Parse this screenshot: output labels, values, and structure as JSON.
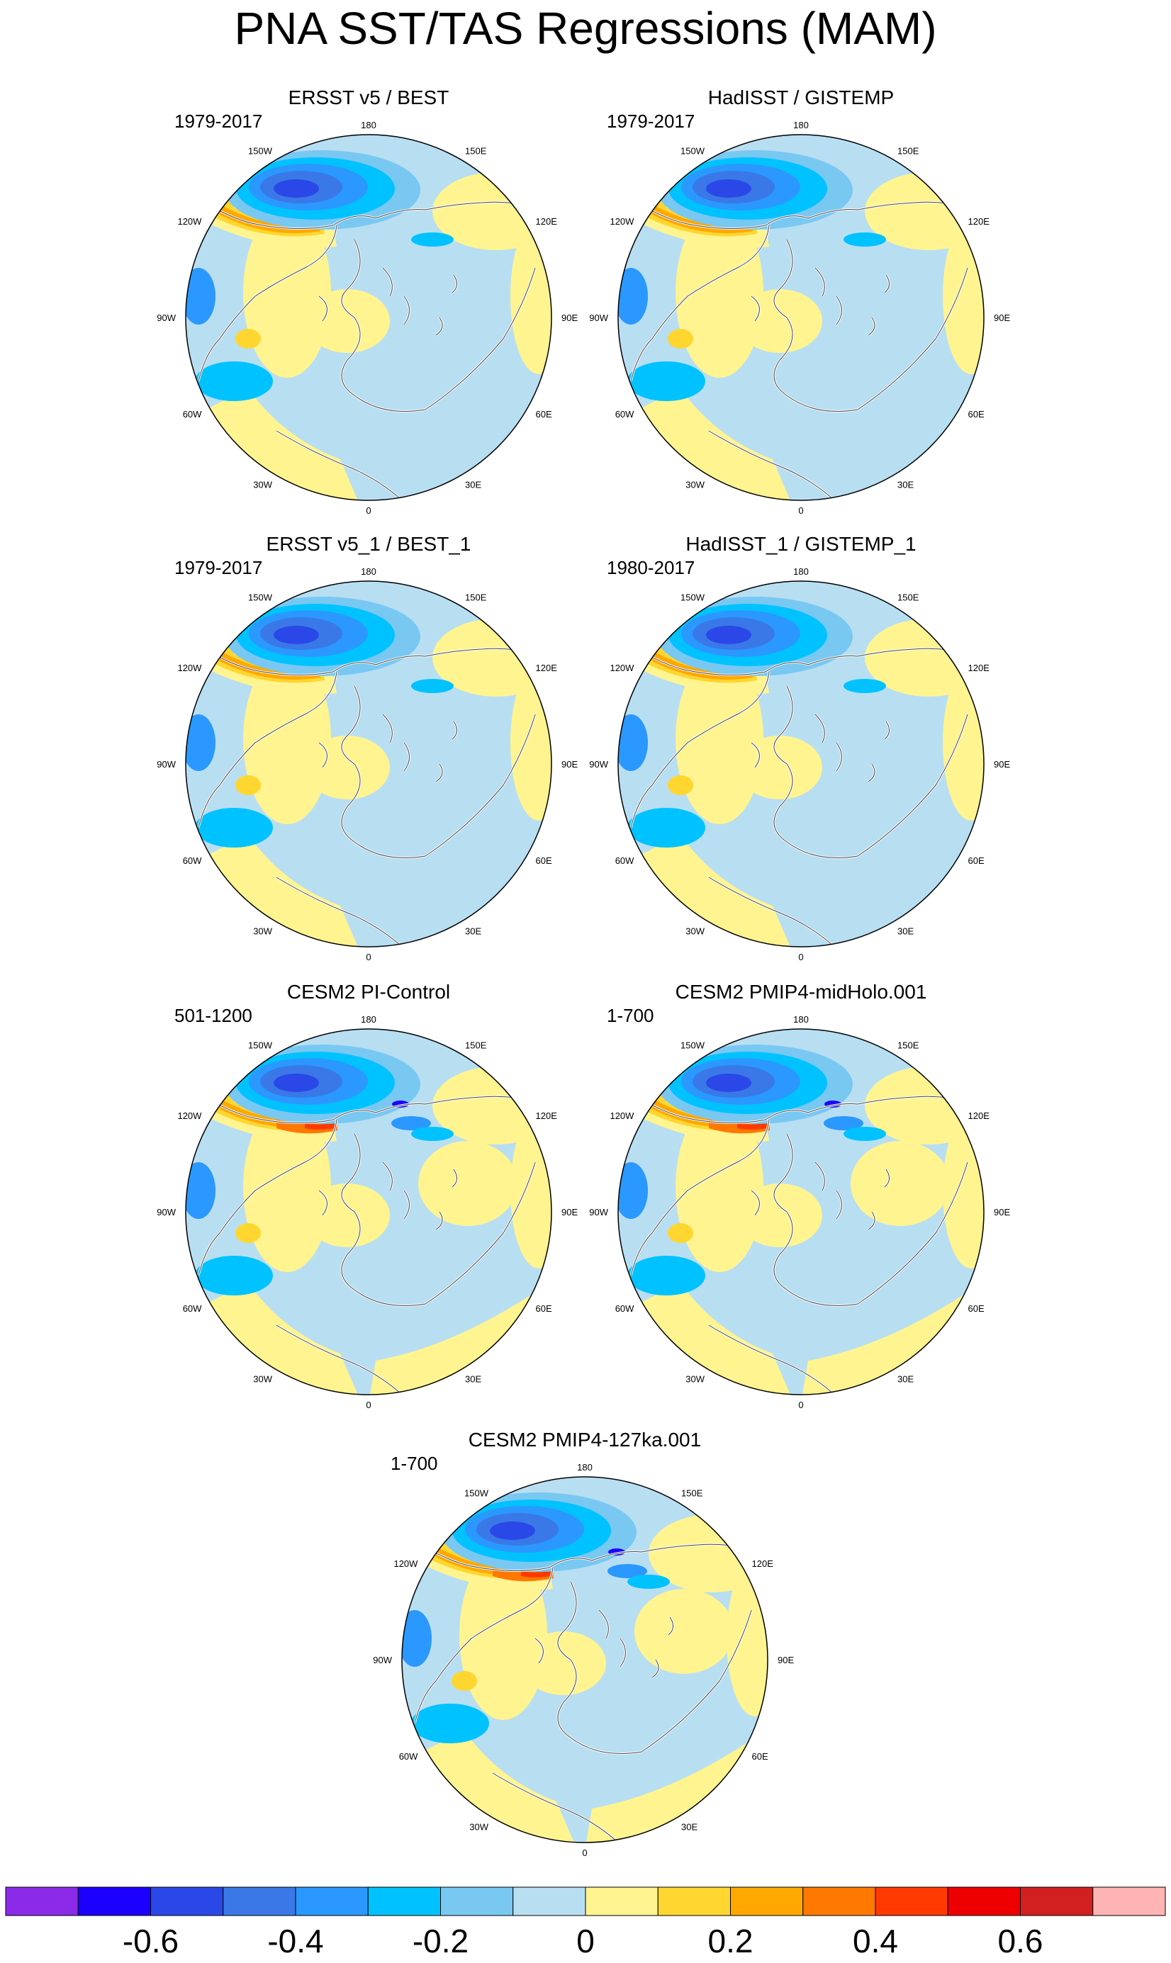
{
  "figure": {
    "title": "PNA SST/TAS Regressions (MAM)"
  },
  "longitude_labels": [
    "180",
    "150E",
    "120E",
    "90E",
    "60E",
    "30E",
    "0",
    "30W",
    "60W",
    "90W",
    "120W",
    "150W"
  ],
  "panels": [
    {
      "title": "ERSST v5 / BEST",
      "period": "1979-2017"
    },
    {
      "title": "HadISST / GISTEMP",
      "period": "1979-2017"
    },
    {
      "title": "ERSST v5_1 / BEST_1",
      "period": "1979-2017"
    },
    {
      "title": "HadISST_1 / GISTEMP_1",
      "period": "1980-2017"
    },
    {
      "title": "CESM2 PI-Control",
      "period": "501-1200"
    },
    {
      "title": "CESM2 PMIP4-midHolo.001",
      "period": "1-700"
    },
    {
      "title": "CESM2 PMIP4-127ka.001",
      "period": "1-700"
    }
  ],
  "colorbar": {
    "colors": [
      "#8b2be8",
      "#1c00ff",
      "#2a48e8",
      "#3a78e8",
      "#2a98ff",
      "#00c2ff",
      "#78c8f2",
      "#b8def2",
      "#fff490",
      "#ffd630",
      "#ffa800",
      "#ff7800",
      "#ff3a00",
      "#ee0000",
      "#d21f1f",
      "#ffb4b4"
    ],
    "tick_labels": [
      "-0.6",
      "-0.4",
      "-0.2",
      "0",
      "0.2",
      "0.4",
      "0.6"
    ],
    "tick_boundary_index": [
      1,
      3,
      5,
      7,
      9,
      11,
      13
    ]
  },
  "colors": {
    "ocean_base": "#b8def2",
    "positive_weak": "#fff490",
    "negative_core": "#2a48e8",
    "positive_core": "#ff7800"
  }
}
